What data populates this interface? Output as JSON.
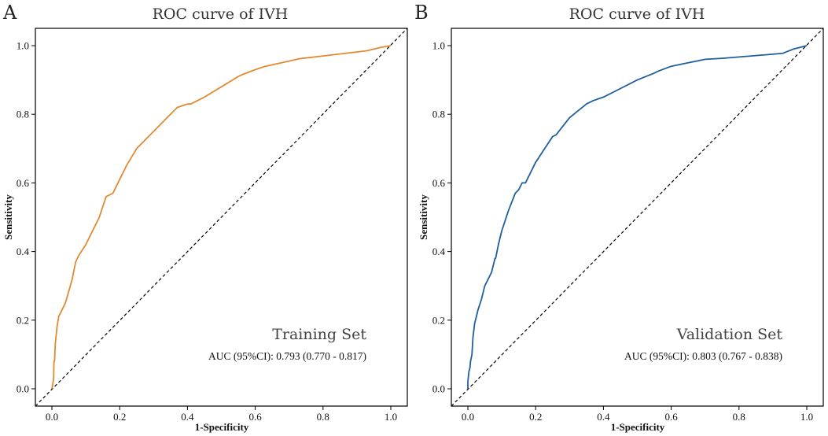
{
  "chart_data": [
    {
      "type": "line",
      "panel": "A",
      "title": "ROC curve of IVH",
      "xlabel": "1-Specificity",
      "ylabel": "Sensitivity",
      "xlim": [
        0,
        1
      ],
      "ylim": [
        0,
        1
      ],
      "xticks": [
        "0.0",
        "0.2",
        "0.4",
        "0.6",
        "0.8",
        "1.0"
      ],
      "yticks": [
        "0.0",
        "0.2",
        "0.4",
        "0.6",
        "0.8",
        "1.0"
      ],
      "color": "#E08A32",
      "set_label": "Training Set",
      "auc_label": "AUC (95%CI): 0.793 (0.770 - 0.817)",
      "legend_position": "bottom-right",
      "x": [
        0.0,
        0.002,
        0.005,
        0.006,
        0.008,
        0.01,
        0.015,
        0.02,
        0.03,
        0.04,
        0.06,
        0.07,
        0.08,
        0.1,
        0.12,
        0.14,
        0.15,
        0.16,
        0.18,
        0.2,
        0.22,
        0.25,
        0.26,
        0.3,
        0.36,
        0.37,
        0.4,
        0.41,
        0.45,
        0.5,
        0.55,
        0.56,
        0.6,
        0.63,
        0.7,
        0.73,
        0.8,
        0.93,
        0.95,
        0.97,
        1.0
      ],
      "y": [
        0.0,
        0.01,
        0.03,
        0.08,
        0.08,
        0.13,
        0.18,
        0.21,
        0.23,
        0.25,
        0.32,
        0.37,
        0.39,
        0.42,
        0.46,
        0.5,
        0.53,
        0.56,
        0.57,
        0.61,
        0.65,
        0.7,
        0.71,
        0.75,
        0.81,
        0.82,
        0.83,
        0.83,
        0.85,
        0.88,
        0.91,
        0.915,
        0.93,
        0.94,
        0.955,
        0.962,
        0.97,
        0.985,
        0.99,
        0.995,
        1.0
      ]
    },
    {
      "type": "line",
      "panel": "B",
      "title": "ROC curve of IVH",
      "xlabel": "1-Specificity",
      "ylabel": "Sensitivity",
      "xlim": [
        0,
        1
      ],
      "ylim": [
        0,
        1
      ],
      "xticks": [
        "0.0",
        "0.2",
        "0.4",
        "0.6",
        "0.8",
        "1.0"
      ],
      "yticks": [
        "0.0",
        "0.2",
        "0.4",
        "0.6",
        "0.8",
        "1.0"
      ],
      "color": "#1F5F9E",
      "set_label": "Validation Set",
      "auc_label": "AUC (95%CI): 0.803 (0.767 - 0.838)",
      "legend_position": "bottom-right",
      "x": [
        0.0,
        0.0,
        0.003,
        0.006,
        0.008,
        0.012,
        0.015,
        0.02,
        0.025,
        0.03,
        0.04,
        0.05,
        0.06,
        0.07,
        0.08,
        0.082,
        0.09,
        0.1,
        0.12,
        0.14,
        0.15,
        0.16,
        0.17,
        0.2,
        0.24,
        0.25,
        0.26,
        0.3,
        0.35,
        0.37,
        0.4,
        0.45,
        0.5,
        0.55,
        0.56,
        0.6,
        0.65,
        0.7,
        0.75,
        0.8,
        0.9,
        0.93,
        0.96,
        1.0
      ],
      "y": [
        0.0,
        0.02,
        0.05,
        0.06,
        0.08,
        0.1,
        0.15,
        0.19,
        0.21,
        0.23,
        0.26,
        0.3,
        0.32,
        0.34,
        0.38,
        0.38,
        0.42,
        0.46,
        0.52,
        0.57,
        0.58,
        0.6,
        0.6,
        0.66,
        0.72,
        0.735,
        0.74,
        0.79,
        0.83,
        0.84,
        0.85,
        0.875,
        0.9,
        0.92,
        0.925,
        0.94,
        0.95,
        0.96,
        0.963,
        0.967,
        0.975,
        0.978,
        0.99,
        1.0
      ]
    }
  ]
}
